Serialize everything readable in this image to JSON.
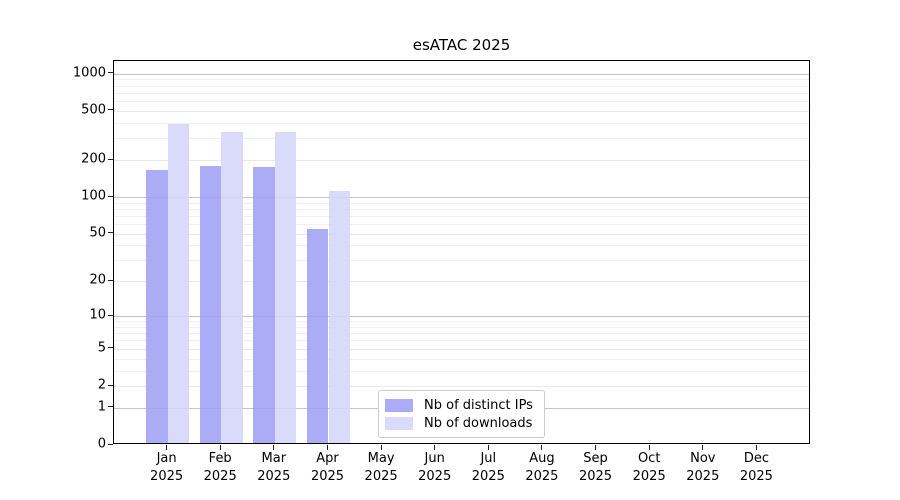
{
  "chart_data": {
    "type": "bar",
    "title": "esATAC 2025",
    "year_label": "2025",
    "categories": [
      "Jan",
      "Feb",
      "Mar",
      "Apr",
      "May",
      "Jun",
      "Jul",
      "Aug",
      "Sep",
      "Oct",
      "Nov",
      "Dec"
    ],
    "series": [
      {
        "name": "Nb of distinct IPs",
        "color": "#a0a0f5",
        "legend_color": "#ababf6",
        "values": [
          165,
          178,
          175,
          55,
          null,
          null,
          null,
          null,
          null,
          null,
          null,
          null
        ]
      },
      {
        "name": "Nb of downloads",
        "color": "#d5d5f9",
        "legend_color": "#dadafa",
        "values": [
          390,
          337,
          340,
          112,
          null,
          null,
          null,
          null,
          null,
          null,
          null,
          null
        ]
      }
    ],
    "scale": "log1p",
    "yticks": [
      0,
      1,
      2,
      5,
      10,
      20,
      50,
      100,
      200,
      500,
      1000
    ],
    "ylim": [
      0,
      1270
    ],
    "xlabel": "",
    "ylabel": "",
    "grid": "on",
    "legend_position": "lower-center-left-inside"
  },
  "colors": {
    "grid_major": "#c4c4c4",
    "grid_minor": "#f1f1f1",
    "axis": "#000000",
    "background": "#ffffff"
  }
}
